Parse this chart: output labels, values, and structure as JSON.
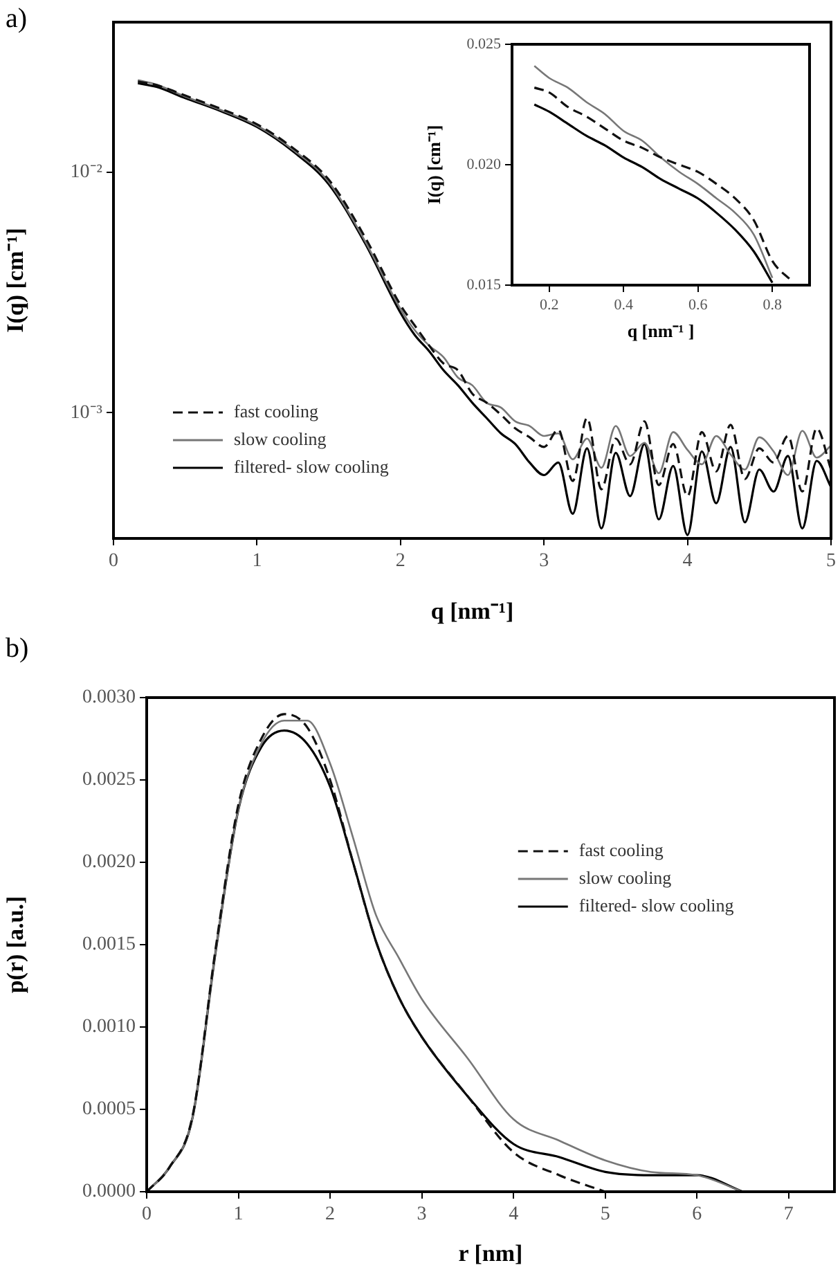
{
  "chart_data": [
    {
      "type": "line",
      "title": "a)",
      "xlabel": "q [nm⁻¹]",
      "ylabel": "I(q) [cm⁻¹]",
      "log": "y",
      "legend": "bottom left",
      "x": [
        0.17,
        0.3,
        0.5,
        0.75,
        1.0,
        1.25,
        1.5,
        1.75,
        2.0,
        2.1,
        2.2,
        2.3,
        2.4,
        2.5,
        2.6,
        2.7,
        2.8,
        2.9,
        3.0,
        3.1,
        3.2,
        3.3,
        3.4,
        3.5,
        3.6,
        3.7,
        3.8,
        3.9,
        4.0,
        4.1,
        4.2,
        4.3,
        4.4,
        4.5,
        4.6,
        4.7,
        4.8,
        4.9,
        5.0
      ],
      "xlim": [
        0,
        5
      ],
      "xticks": [
        0,
        1,
        2,
        3,
        4,
        5
      ],
      "ylim": [
        0.0003,
        0.042
      ],
      "yticks": [
        {
          "value": 0.001,
          "label": "10⁻³"
        },
        {
          "value": 0.01,
          "label": "10⁻²"
        }
      ],
      "series": [
        {
          "name": "fast cooling",
          "color": "#111111",
          "line_style": "dashed",
          "values": [
            0.0238,
            0.023,
            0.0208,
            0.0183,
            0.0158,
            0.0126,
            0.0093,
            0.0054,
            0.0028,
            0.0023,
            0.0019,
            0.0016,
            0.0015,
            0.0012,
            0.0011,
            0.00098,
            0.00086,
            0.00079,
            0.00072,
            0.00085,
            0.00052,
            0.00095,
            0.00048,
            0.00078,
            0.00061,
            0.00092,
            0.0005,
            0.00074,
            0.00045,
            0.00083,
            0.00057,
            0.00089,
            0.00053,
            0.00071,
            0.00062,
            0.0008,
            0.00047,
            0.00086,
            0.00058
          ]
        },
        {
          "name": "slow cooling",
          "color": "#777777",
          "line_style": "solid",
          "values": [
            0.0241,
            0.0231,
            0.0206,
            0.0181,
            0.0156,
            0.0124,
            0.0091,
            0.0052,
            0.0027,
            0.0022,
            0.0019,
            0.0017,
            0.0014,
            0.0013,
            0.0011,
            0.00105,
            0.00092,
            0.00088,
            0.0008,
            0.00082,
            0.00064,
            0.00078,
            0.00059,
            0.00088,
            0.00066,
            0.00075,
            0.00056,
            0.00083,
            0.0007,
            0.00061,
            0.0008,
            0.00067,
            0.00058,
            0.00079,
            0.00069,
            0.00055,
            0.00084,
            0.00065,
            0.00073
          ]
        },
        {
          "name": "filtered- slow cooling",
          "color": "#000000",
          "line_style": "solid",
          "values": [
            0.0234,
            0.0226,
            0.0203,
            0.0179,
            0.0154,
            0.0122,
            0.0089,
            0.0051,
            0.0026,
            0.0021,
            0.0018,
            0.0015,
            0.0013,
            0.0011,
            0.00095,
            0.00082,
            0.00074,
            0.00062,
            0.00055,
            0.00062,
            0.00038,
            0.00071,
            0.00033,
            0.00068,
            0.00045,
            0.00074,
            0.00036,
            0.0006,
            0.00031,
            0.00069,
            0.00042,
            0.00072,
            0.00035,
            0.00058,
            0.00047,
            0.00066,
            0.00033,
            0.00063,
            0.00049
          ]
        }
      ]
    },
    {
      "type": "line",
      "xlabel": "q [nm⁻¹ ]",
      "ylabel": "I(q) [cm⁻¹]",
      "x": [
        0.16,
        0.2,
        0.25,
        0.3,
        0.35,
        0.4,
        0.45,
        0.5,
        0.55,
        0.6,
        0.65,
        0.7,
        0.75,
        0.8,
        0.85
      ],
      "xlim": [
        0.1,
        0.9
      ],
      "xticks": [
        0.2,
        0.4,
        0.6,
        0.8
      ],
      "ylim": [
        0.015,
        0.025
      ],
      "yticks": [
        {
          "value": 0.015,
          "label": "0.015"
        },
        {
          "value": 0.02,
          "label": "0.020"
        },
        {
          "value": 0.025,
          "label": "0.025"
        }
      ],
      "series": [
        {
          "color": "#111111",
          "line_style": "dashed",
          "values": [
            0.0232,
            0.023,
            0.0224,
            0.022,
            0.0215,
            0.021,
            0.0207,
            0.0203,
            0.02,
            0.0197,
            0.0192,
            0.0186,
            0.0177,
            0.016,
            0.0152
          ]
        },
        {
          "color": "#777777",
          "line_style": "solid",
          "values": [
            0.0241,
            0.0236,
            0.0232,
            0.0226,
            0.0221,
            0.0214,
            0.021,
            0.0203,
            0.0197,
            0.0192,
            0.0186,
            0.018,
            0.0171,
            0.0153,
            null
          ]
        },
        {
          "color": "#000000",
          "line_style": "solid",
          "values": [
            0.0225,
            0.0222,
            0.0217,
            0.0212,
            0.0208,
            0.0203,
            0.0199,
            0.0194,
            0.019,
            0.0186,
            0.018,
            0.0173,
            0.0164,
            0.0151,
            null
          ]
        }
      ]
    },
    {
      "type": "line",
      "title": "b)",
      "xlabel": "r [nm]",
      "ylabel": "p(r) [a.u.]",
      "legend": "right",
      "x": [
        0,
        0.25,
        0.5,
        0.75,
        1.0,
        1.25,
        1.5,
        1.75,
        2.0,
        2.25,
        2.5,
        2.75,
        3.0,
        3.5,
        4.0,
        4.5,
        5.0,
        5.5,
        6.0,
        6.5
      ],
      "xlim": [
        0,
        7.5
      ],
      "xticks": [
        0,
        1,
        2,
        3,
        4,
        5,
        6,
        7
      ],
      "ylim": [
        0,
        0.003
      ],
      "yticks": [
        {
          "value": 0,
          "label": "0.0000"
        },
        {
          "value": 0.0005,
          "label": "0.0005"
        },
        {
          "value": 0.001,
          "label": "0.0010"
        },
        {
          "value": 0.0015,
          "label": "0.0015"
        },
        {
          "value": 0.002,
          "label": "0.0020"
        },
        {
          "value": 0.0025,
          "label": "0.0025"
        },
        {
          "value": 0.003,
          "label": "0.0030"
        }
      ],
      "series": [
        {
          "name": "fast cooling",
          "color": "#111111",
          "line_style": "dashed",
          "values": [
            0,
            0.00015,
            0.00046,
            0.00147,
            0.00235,
            0.00275,
            0.0029,
            0.00282,
            0.0025,
            0.002,
            0.00152,
            0.00118,
            0.00094,
            0.00058,
            0.00024,
            0.0001,
            0,
            null,
            null,
            null
          ]
        },
        {
          "name": "slow cooling",
          "color": "#777777",
          "line_style": "solid",
          "values": [
            0,
            0.00015,
            0.00045,
            0.00145,
            0.00232,
            0.00272,
            0.00286,
            0.00286,
            0.0026,
            0.00215,
            0.00168,
            0.00142,
            0.00117,
            0.00081,
            0.00044,
            0.00031,
            0.00019,
            0.00012,
            0.0001,
            0
          ]
        },
        {
          "name": "filtered- slow cooling",
          "color": "#000000",
          "line_style": "solid",
          "values": [
            0,
            0.00015,
            0.00045,
            0.00145,
            0.00232,
            0.0027,
            0.0028,
            0.00272,
            0.00246,
            0.002,
            0.00152,
            0.00118,
            0.00094,
            0.00058,
            0.00029,
            0.00021,
            0.00012,
            0.0001,
            0.0001,
            0
          ]
        }
      ]
    }
  ]
}
